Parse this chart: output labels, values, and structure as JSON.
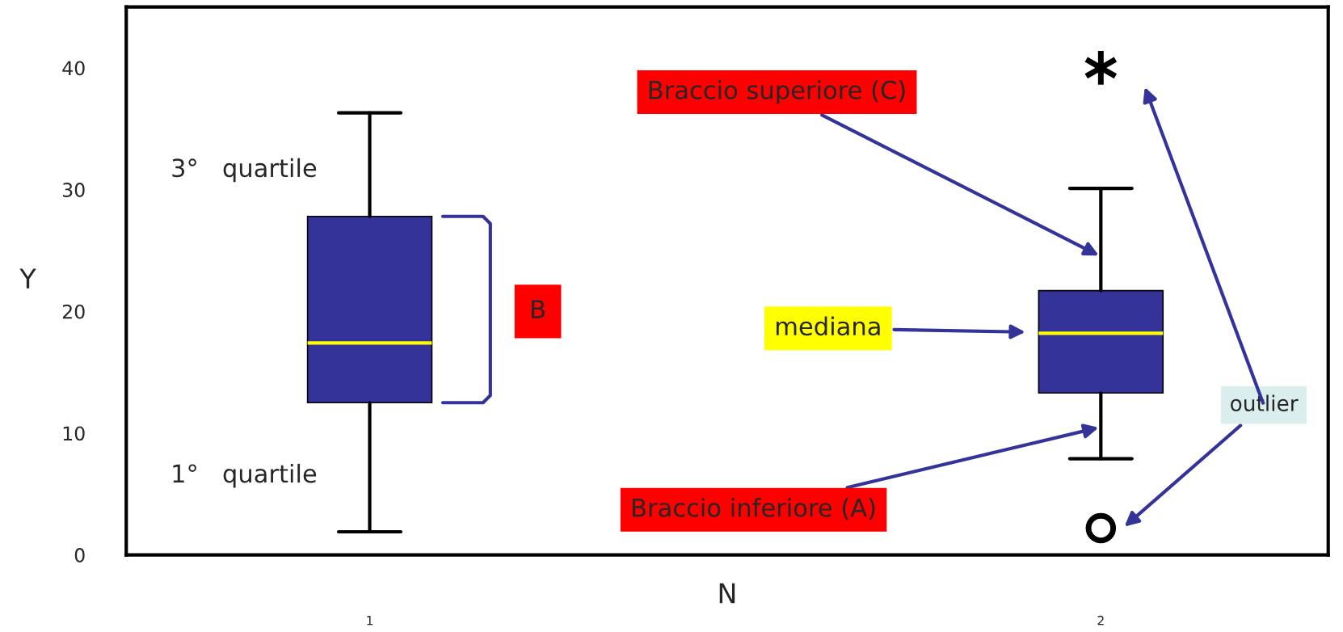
{
  "chart_data": {
    "type": "box",
    "xlabel": "N",
    "ylabel": "Y",
    "categories": [
      "1",
      "2"
    ],
    "series": [
      {
        "color": "#333399",
        "boxes": [
          {
            "low": 1.9,
            "q1": 12.5,
            "median": 17.4,
            "q3": 27.8,
            "high": 36.3
          },
          {
            "low": 7.9,
            "q1": 13.3,
            "median": 18.2,
            "q3": 21.7,
            "high": 30.1,
            "outliers": [
              40,
              2.2
            ]
          }
        ]
      }
    ],
    "ylim": [
      0,
      45
    ],
    "yticks": [
      0,
      10,
      20,
      30,
      40
    ],
    "grid": false,
    "legend": false,
    "annotations": [
      "3°   quartile",
      "1°   quartile",
      "B",
      "Braccio superiore (C)",
      "mediana",
      "Braccio inferiore (A)",
      "outlier"
    ]
  }
}
